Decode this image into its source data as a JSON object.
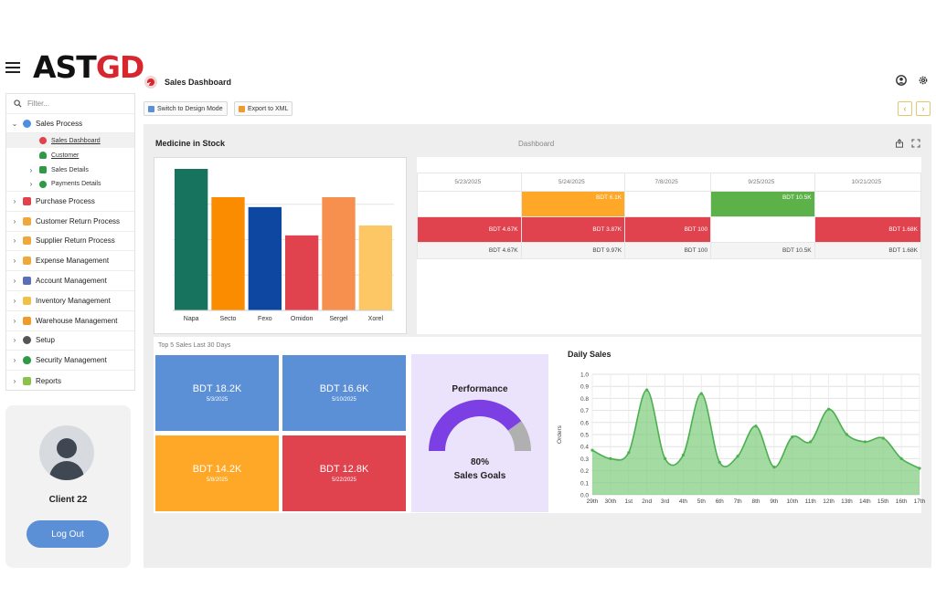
{
  "app": {
    "logo_part1": "AST",
    "logo_part2": "GD",
    "page_title": "Sales Dashboard"
  },
  "sidebar": {
    "filter_placeholder": "Filter...",
    "sales_process": {
      "label": "Sales Process",
      "children": [
        {
          "label": "Sales Dashboard"
        },
        {
          "label": "Customer"
        },
        {
          "label": "Sales Details"
        },
        {
          "label": "Payments Details"
        }
      ]
    },
    "items": [
      {
        "label": "Purchase Process"
      },
      {
        "label": "Customer Return Process"
      },
      {
        "label": "Supplier Return Process"
      },
      {
        "label": "Expense Management"
      },
      {
        "label": "Account Management"
      },
      {
        "label": "Inventory Management"
      },
      {
        "label": "Warehouse Management"
      },
      {
        "label": "Setup"
      },
      {
        "label": "Security Management"
      },
      {
        "label": "Reports"
      }
    ]
  },
  "user": {
    "name": "Client 22",
    "logout_label": "Log Out"
  },
  "toolbar": {
    "design_mode_label": "Switch to Design Mode",
    "export_label": "Export to XML"
  },
  "dashboard": {
    "title": "Medicine in Stock",
    "center_label": "Dashboard"
  },
  "grid": {
    "columns": [
      "5/23/2025",
      "5/24/2025",
      "7/8/2025",
      "9/25/2025",
      "10/21/2025"
    ],
    "row1": [
      "",
      "BDT 6.1K",
      "",
      "BDT 10.5K",
      ""
    ],
    "row2": [
      "BDT 4.67K",
      "BDT 3.87K",
      "BDT 100",
      "",
      "BDT 1.68K"
    ],
    "row3": [
      "BDT 4.67K",
      "BDT 9.97K",
      "BDT 100",
      "BDT 10.5K",
      "BDT 1.68K"
    ]
  },
  "top5": {
    "title": "Top 5 Sales Last 30 Days",
    "tiles": [
      {
        "amount": "BDT 18.2K",
        "date": "5/3/2025",
        "color": "#5b8fd6"
      },
      {
        "amount": "BDT 16.6K",
        "date": "5/10/2025",
        "color": "#5b8fd6"
      },
      {
        "amount": "BDT 14.2K",
        "date": "5/8/2025",
        "color": "#ffa726"
      },
      {
        "amount": "BDT 12.8K",
        "date": "5/22/2025",
        "color": "#e0424e"
      }
    ]
  },
  "performance": {
    "title": "Performance",
    "value_text": "80%",
    "label": "Sales Goals",
    "value": 0.8
  },
  "chart_data": [
    {
      "type": "bar",
      "categories": [
        "Napa",
        "Secto",
        "Fexo",
        "Omidon",
        "Sergel",
        "Xorel"
      ],
      "values": [
        100,
        80,
        73,
        53,
        80,
        60
      ],
      "colors": [
        "#18735e",
        "#fb8c00",
        "#0d47a1",
        "#e0424e",
        "#f78f4e",
        "#fdc765"
      ],
      "ylim": [
        0,
        100
      ],
      "grid": true
    },
    {
      "type": "area",
      "title": "Daily Sales",
      "ylabel": "Orders",
      "x": [
        "29th",
        "30th",
        "1st",
        "2nd",
        "3rd",
        "4th",
        "5th",
        "6th",
        "7th",
        "8th",
        "9th",
        "10th",
        "11th",
        "12th",
        "13th",
        "14th",
        "15th",
        "16th",
        "17th"
      ],
      "values": [
        0.37,
        0.3,
        0.35,
        0.87,
        0.3,
        0.33,
        0.84,
        0.27,
        0.32,
        0.57,
        0.23,
        0.48,
        0.44,
        0.71,
        0.5,
        0.44,
        0.47,
        0.3,
        0.22
      ],
      "yticks": [
        "1.0",
        "0.9",
        "0.8",
        "0.7",
        "0.6",
        "0.5",
        "0.4",
        "0.3",
        "0.2",
        "0.1",
        "0.0"
      ],
      "ylim": [
        0,
        1
      ],
      "color": "#7ccc7c",
      "grid": true
    }
  ]
}
